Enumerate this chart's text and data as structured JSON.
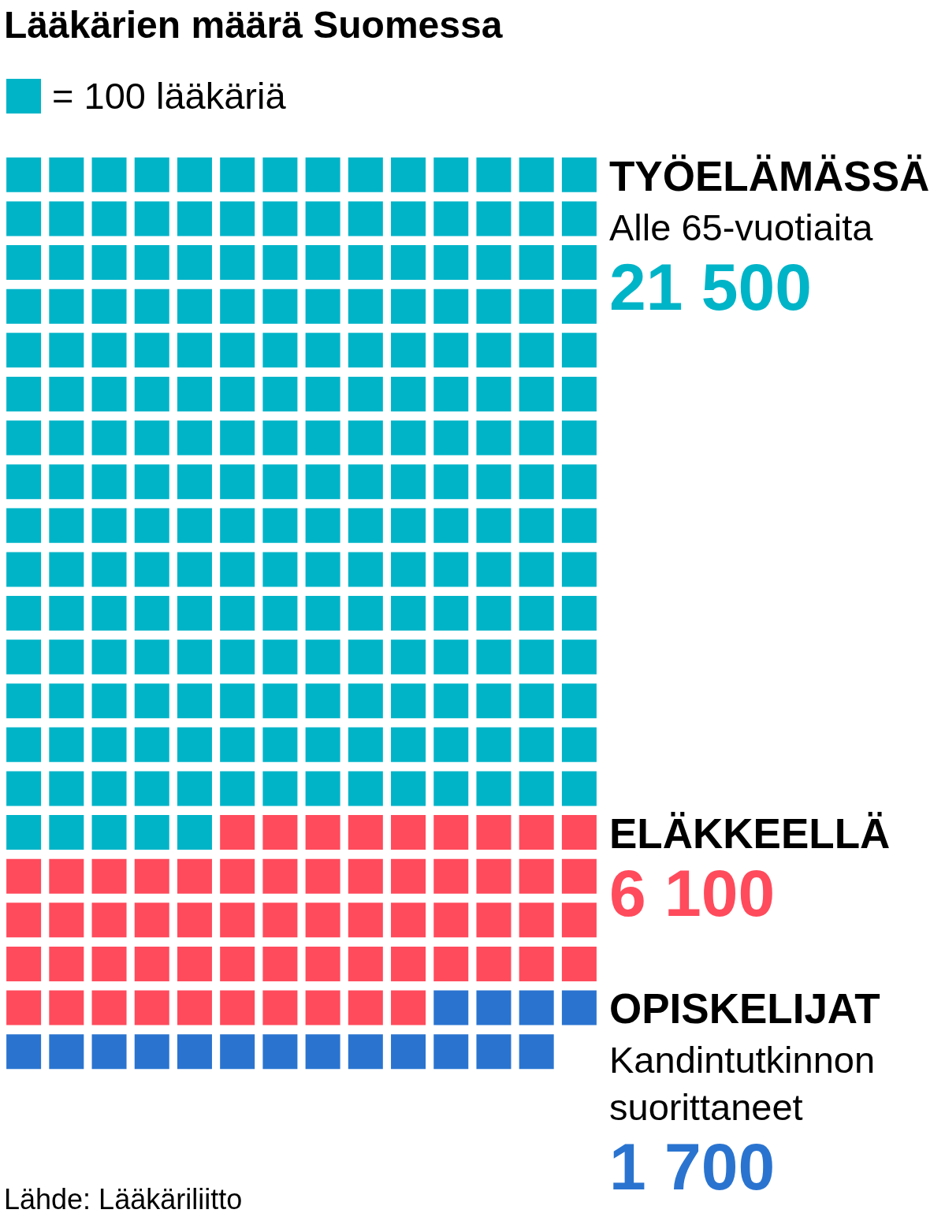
{
  "chart_data": {
    "type": "other",
    "title": "Lääkärien määrä Suomessa",
    "legend_title": "= 100 lääkäriä",
    "categories": [
      "TYÖELÄMÄSSÄ",
      "ELÄKKEELLÄ",
      "OPISKELIJAT"
    ],
    "values": [
      21500,
      6100,
      1700
    ],
    "colors": [
      "#00b4c8",
      "#ff4b5c",
      "#2a74d0"
    ],
    "value_labels": [
      "21 500",
      "6 100",
      "1 700"
    ],
    "annotations": [
      {
        "text": "Alle 65-vuotiaita",
        "x": "TYÖELÄMÄSSÄ"
      },
      {
        "text": "Kandintutkinnon suorittaneet",
        "x": "OPISKELIJAT"
      },
      "Lähde: Lääkäriliitto"
    ]
  }
}
